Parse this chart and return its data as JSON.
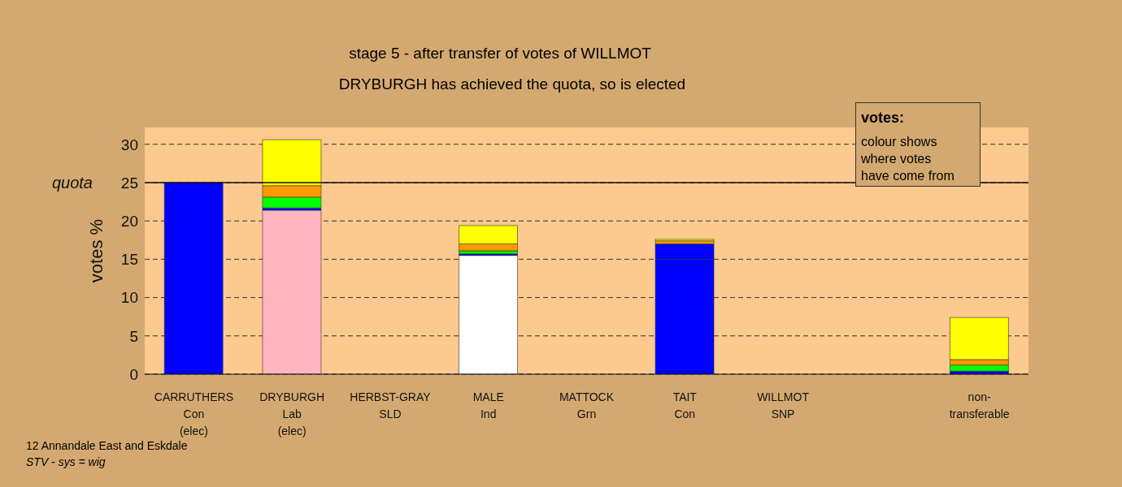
{
  "chart_data": {
    "type": "bar",
    "stacked": true,
    "title": "stage 5 - after transfer of votes of WILLMOT",
    "subtitle": "DRYBURGH has achieved the quota, so is elected",
    "ylabel": "votes %",
    "categories": [
      "CARRUTHERS\nCon\n(elec)",
      "DRYBURGH\nLab\n(elec)",
      "HERBST-GRAY\nSLD",
      "MALE\nInd",
      "MATTOCK\nGrn",
      "TAIT\nCon",
      "WILLMOT\nSNP",
      null,
      "non-\ntransferable"
    ],
    "series": [
      {
        "colors": [
          "#0000ff",
          "#ffb6c1",
          "#ffffff",
          "#ffffff",
          "#ffffff",
          "#0000ff",
          "#ffffff",
          "#ffffff",
          "#0000ff"
        ],
        "values": [
          25,
          21.4,
          null,
          15.5,
          null,
          15,
          null,
          null,
          null
        ]
      },
      {
        "color": "#0000ff",
        "values": [
          null,
          0.3,
          null,
          0.2,
          null,
          2.0,
          null,
          null,
          0.4
        ]
      },
      {
        "color": "#00ff00",
        "values": [
          null,
          1.4,
          null,
          0.4,
          null,
          null,
          null,
          null,
          0.8
        ]
      },
      {
        "color": "#ff9900",
        "values": [
          null,
          1.5,
          null,
          0.9,
          null,
          0.4,
          null,
          null,
          0.7
        ]
      },
      {
        "color": "#ffff00",
        "values": [
          null,
          6.0,
          null,
          2.4,
          null,
          0.2,
          null,
          null,
          5.5
        ]
      }
    ],
    "ylim": [
      0,
      32.2
    ],
    "yticks": [
      0,
      5,
      10,
      15,
      20,
      25,
      30
    ],
    "grid": "y",
    "ref_lines": [
      {
        "axis": "y",
        "value": 25,
        "label": "quota"
      }
    ],
    "annotations": [
      "votes:",
      "colour shows\nwhere votes\nhave come from",
      "12 Annandale East and Eskdale",
      "STV - sys = wig"
    ]
  }
}
